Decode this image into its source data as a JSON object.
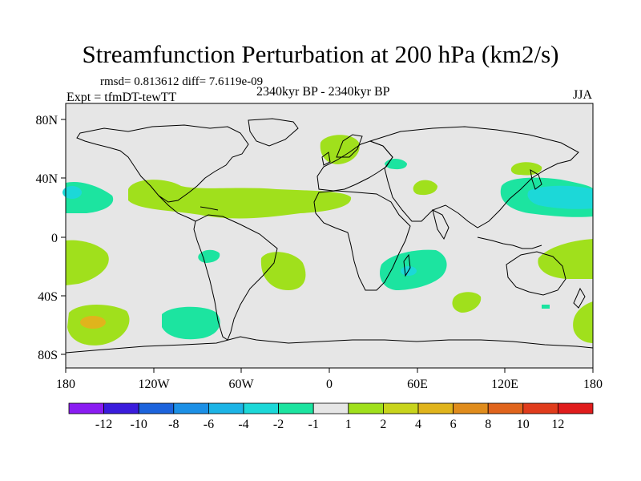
{
  "title": "Streamfunction Perturbation at 200 hPa (km2/s)",
  "stats": "rmsd= 0.813612 diff= 7.6119e-09",
  "period": "2340kyr BP - 2340kyr BP",
  "expt": "Expt = tfmDT-tewTT",
  "season": "JJA",
  "lat_labels": [
    "80N",
    "40N",
    "0",
    "40S",
    "80S"
  ],
  "lon_labels": [
    "180",
    "120W",
    "60W",
    "0",
    "60E",
    "120E",
    "180"
  ],
  "colorbar": {
    "labels": [
      "-12",
      "-10",
      "-8",
      "-6",
      "-4",
      "-2",
      "-1",
      "1",
      "2",
      "4",
      "6",
      "8",
      "10",
      "12"
    ],
    "colors": [
      "#8a1cf2",
      "#3a1cdc",
      "#1c63dc",
      "#1c90e6",
      "#1cb4e6",
      "#1cd8d8",
      "#1ce4a0",
      "#e6e6e6",
      "#a0e01c",
      "#c8d41c",
      "#e0b41c",
      "#e08c1c",
      "#e0641c",
      "#e03c1c",
      "#e01c1c"
    ]
  },
  "contour_colors": {
    "neg1": "#1ce4a0",
    "neg2": "#1cd8d8",
    "pos1": "#a0e01c",
    "pos2": "#e0b41c",
    "background": "#e6e6e6"
  }
}
